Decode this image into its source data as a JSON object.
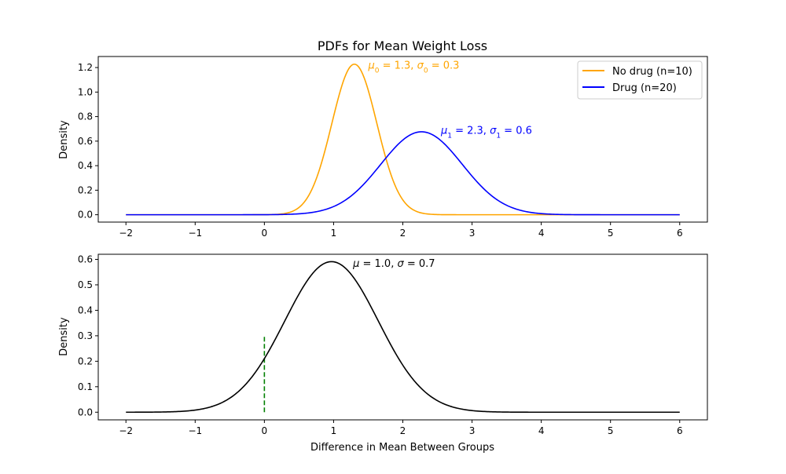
{
  "chart_data": [
    {
      "type": "line",
      "title": "PDFs for Mean Weight Loss",
      "xlabel": "",
      "ylabel": "Density",
      "xlim": [
        -2.4,
        6.4
      ],
      "ylim": [
        -0.06,
        1.29
      ],
      "xticks": [
        -2,
        -1,
        0,
        1,
        2,
        3,
        4,
        5,
        6
      ],
      "xtick_labels": [
        "−2",
        "−1",
        "0",
        "1",
        "2",
        "3",
        "4",
        "5",
        "6"
      ],
      "yticks": [
        0.0,
        0.2,
        0.4,
        0.6,
        0.8,
        1.0,
        1.2
      ],
      "ytick_labels": [
        "0.0",
        "0.2",
        "0.4",
        "0.6",
        "0.8",
        "1.0",
        "1.2"
      ],
      "grid": false,
      "legend_position": "top-right",
      "series": [
        {
          "name": "No drug (n=10)",
          "color": "#ffa500",
          "distribution": "normal",
          "mean": 1.3,
          "sd": 0.325,
          "x_range": [
            -2,
            6
          ],
          "annotation": {
            "x": 1.5,
            "y": 1.19,
            "parts": [
              [
                "μ",
                ""
              ],
              [
                "0",
                "sub"
              ],
              [
                " = 1.3, ",
                ""
              ],
              [
                "σ",
                ""
              ],
              [
                "0",
                "sub"
              ],
              [
                " = 0.3",
                ""
              ]
            ]
          }
        },
        {
          "name": "Drug (n=20)",
          "color": "#0000ff",
          "distribution": "normal",
          "mean": 2.27,
          "sd": 0.59,
          "x_range": [
            -2,
            6
          ],
          "annotation": {
            "x": 2.55,
            "y": 0.66,
            "parts": [
              [
                "μ",
                ""
              ],
              [
                "1",
                "sub"
              ],
              [
                " = 2.3, ",
                ""
              ],
              [
                "σ",
                ""
              ],
              [
                "1",
                "sub"
              ],
              [
                " = 0.6",
                ""
              ]
            ]
          }
        }
      ]
    },
    {
      "type": "line",
      "title": "",
      "xlabel": "Difference in Mean Between Groups",
      "ylabel": "Density",
      "xlim": [
        -2.4,
        6.4
      ],
      "ylim": [
        -0.03,
        0.62
      ],
      "xticks": [
        -2,
        -1,
        0,
        1,
        2,
        3,
        4,
        5,
        6
      ],
      "xtick_labels": [
        "−2",
        "−1",
        "0",
        "1",
        "2",
        "3",
        "4",
        "5",
        "6"
      ],
      "yticks": [
        0.0,
        0.1,
        0.2,
        0.3,
        0.4,
        0.5,
        0.6
      ],
      "ytick_labels": [
        "0.0",
        "0.1",
        "0.2",
        "0.3",
        "0.4",
        "0.5",
        "0.6"
      ],
      "grid": false,
      "series": [
        {
          "color": "#000000",
          "distribution": "normal",
          "mean": 0.97,
          "sd": 0.675,
          "x_range": [
            -2,
            6
          ],
          "annotation": {
            "x": 1.28,
            "y": 0.57,
            "parts": [
              [
                "μ",
                ""
              ],
              [
                " = 1.0, ",
                ""
              ],
              [
                "σ",
                ""
              ],
              [
                " = 0.7",
                ""
              ]
            ]
          }
        }
      ],
      "reference_line": {
        "x": 0,
        "y0": 0,
        "y1": 0.3,
        "color": "#008000",
        "style": "dashed"
      }
    }
  ]
}
